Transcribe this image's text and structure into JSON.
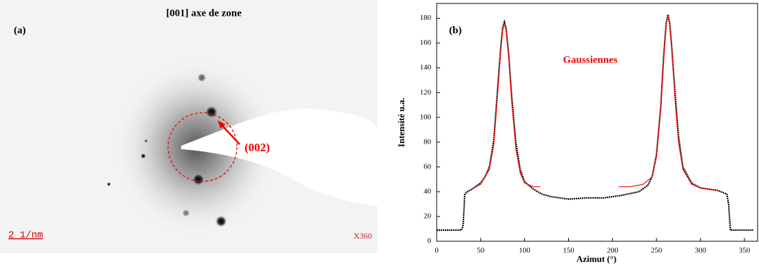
{
  "panel_a": {
    "label": "(a)",
    "title": "[001] axe de zone",
    "reflection": "(002)",
    "scale_bar": "2 1/nm",
    "magnification": "X360"
  },
  "chart_data": {
    "type": "line",
    "panel_label": "(b)",
    "annotation": "Gaussiennes",
    "x_label": "Azimut (°)",
    "y_label": "Intensité u.a.",
    "xlim": [
      0,
      365
    ],
    "ylim": [
      0,
      192
    ],
    "xticks": [
      0,
      50,
      100,
      150,
      200,
      250,
      300,
      350
    ],
    "yticks": [
      0,
      20,
      40,
      60,
      80,
      100,
      120,
      140,
      160,
      180
    ],
    "series": [
      {
        "color": "#000000",
        "x": [
          0,
          10,
          20,
          28,
          30,
          32,
          35,
          40,
          50,
          55,
          60,
          65,
          70,
          73,
          75,
          77,
          79,
          82,
          85,
          90,
          95,
          100,
          110,
          120,
          130,
          150,
          170,
          190,
          210,
          230,
          240,
          245,
          250,
          255,
          258,
          261,
          263,
          265,
          267,
          270,
          275,
          280,
          290,
          300,
          310,
          320,
          330,
          332,
          334,
          340,
          350,
          360
        ],
        "values": [
          9,
          9,
          9,
          9,
          12,
          38,
          40,
          42,
          47,
          52,
          60,
          82,
          130,
          158,
          172,
          177,
          172,
          150,
          120,
          80,
          58,
          48,
          42,
          38,
          36,
          34,
          35,
          35,
          37,
          40,
          45,
          52,
          70,
          110,
          148,
          176,
          183,
          176,
          160,
          130,
          85,
          60,
          47,
          43,
          42,
          41,
          38,
          30,
          9,
          9,
          9,
          9
        ]
      },
      {
        "color": "#ff0000",
        "x": [
          40,
          50,
          60,
          65,
          70,
          73,
          75,
          77,
          79,
          82,
          85,
          90,
          95,
          100,
          110,
          118
        ],
        "values": [
          42,
          46,
          58,
          78,
          125,
          155,
          170,
          176,
          170,
          148,
          115,
          75,
          55,
          47,
          44,
          44
        ]
      },
      {
        "color": "#ff0000",
        "x": [
          207,
          220,
          235,
          245,
          250,
          255,
          258,
          261,
          263,
          265,
          268,
          271,
          275,
          280,
          290,
          300,
          320
        ],
        "values": [
          44,
          44,
          46,
          52,
          68,
          110,
          145,
          175,
          182,
          175,
          150,
          115,
          80,
          58,
          46,
          43,
          41
        ]
      }
    ]
  }
}
